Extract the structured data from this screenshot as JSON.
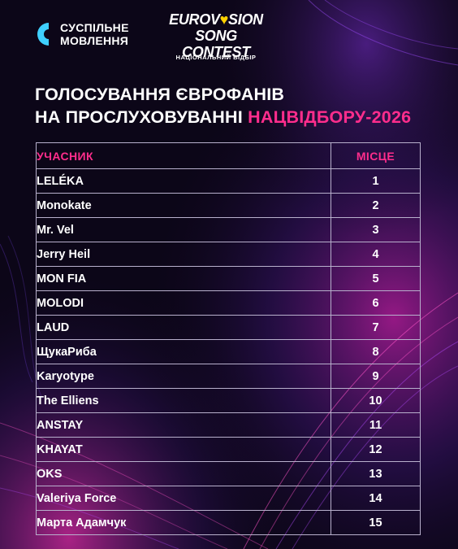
{
  "header": {
    "broadcaster_line1": "СУСПІЛЬНЕ",
    "broadcaster_line2": "МОВЛЕННЯ",
    "esc_line1a": "EUROV",
    "esc_line1b": "♥",
    "esc_line1c": "SION",
    "esc_line2": "SONG CONTEST",
    "esc_subtitle": "НАЦІОНАЛЬНИЙ ВІДБІР"
  },
  "title": {
    "line1": "ГОЛОСУВАННЯ ЄВРОФАНІВ",
    "line2": "НА ПРОСЛУХОВУВАННІ",
    "accent": "НАЦВІДБОРУ-2026"
  },
  "table": {
    "headers": [
      "УЧАСНИК",
      "МІСЦЕ"
    ],
    "rows": [
      {
        "name": "LELÉKA",
        "place": "1"
      },
      {
        "name": "Monokate",
        "place": "2"
      },
      {
        "name": "Mr. Vel",
        "place": "3"
      },
      {
        "name": "Jerry Heil",
        "place": "4"
      },
      {
        "name": "MON FIA",
        "place": "5"
      },
      {
        "name": "MOLODI",
        "place": "6"
      },
      {
        "name": "LAUD",
        "place": "7"
      },
      {
        "name": "ЩукаРиба",
        "place": "8"
      },
      {
        "name": "Karyotype",
        "place": "9"
      },
      {
        "name": "The Elliens",
        "place": "10"
      },
      {
        "name": "ANSTAY",
        "place": "11"
      },
      {
        "name": "KHAYAT",
        "place": "12"
      },
      {
        "name": "OKS",
        "place": "13"
      },
      {
        "name": "Valeriya Force",
        "place": "14"
      },
      {
        "name": "Марта Адамчук",
        "place": "15"
      }
    ]
  },
  "colors": {
    "background": "#0c0618",
    "accent_pink": "#ff2d8c",
    "grid_line": "#b8b0cc",
    "brand_cyan": "#3fd0ff"
  }
}
